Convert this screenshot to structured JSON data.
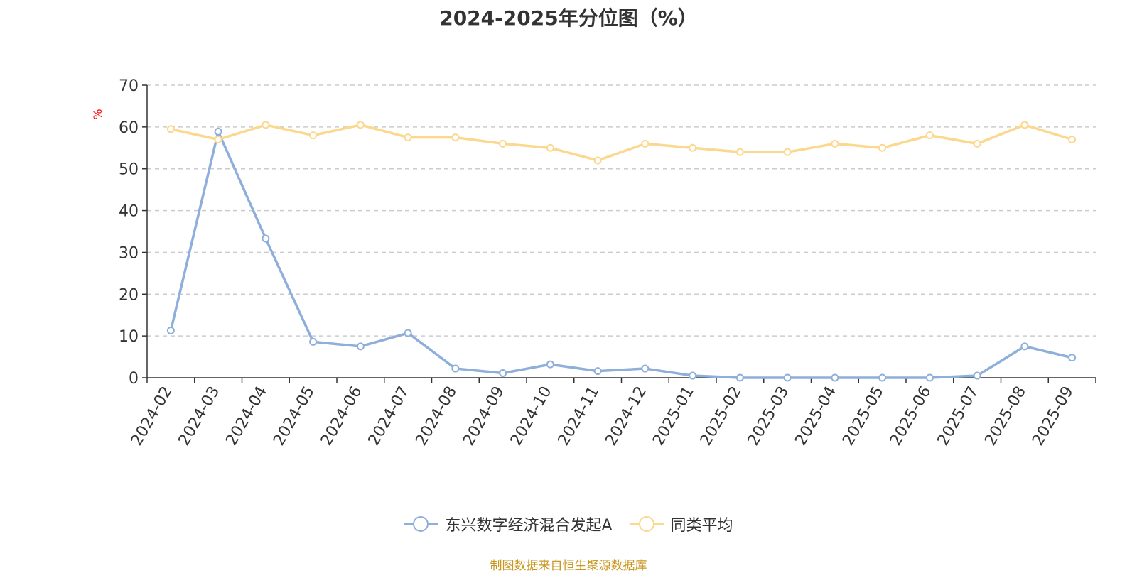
{
  "chart_data": {
    "type": "line",
    "title": "2024-2025年分位图（%）",
    "ylabel": "%",
    "ylim": [
      0,
      70
    ],
    "yticks": [
      0,
      10,
      20,
      30,
      40,
      50,
      60,
      70
    ],
    "grid": true,
    "legend_position": "bottom",
    "categories": [
      "2024-02",
      "2024-03",
      "2024-04",
      "2024-05",
      "2024-06",
      "2024-07",
      "2024-08",
      "2024-09",
      "2024-10",
      "2024-11",
      "2024-12",
      "2025-01",
      "2025-02",
      "2025-03",
      "2025-04",
      "2025-05",
      "2025-06",
      "2025-07",
      "2025-08",
      "2025-09"
    ],
    "series": [
      {
        "name": "东兴数字经济混合发起A",
        "color": "#8eaedb",
        "values": [
          11.3,
          58.9,
          33.3,
          8.6,
          7.5,
          10.7,
          2.2,
          1.1,
          3.2,
          1.6,
          2.2,
          0.5,
          0.0,
          0.0,
          0.0,
          0.0,
          0.0,
          0.5,
          7.5,
          4.8
        ]
      },
      {
        "name": "同类平均",
        "color": "#fbd88e",
        "values": [
          59.5,
          57.0,
          60.5,
          58.0,
          60.5,
          57.5,
          57.5,
          56.0,
          55.0,
          52.0,
          56.0,
          55.0,
          54.0,
          54.0,
          56.0,
          55.0,
          58.0,
          56.0,
          60.5,
          57.0
        ]
      }
    ]
  },
  "footer": {
    "source": "制图数据来自恒生聚源数据库"
  }
}
